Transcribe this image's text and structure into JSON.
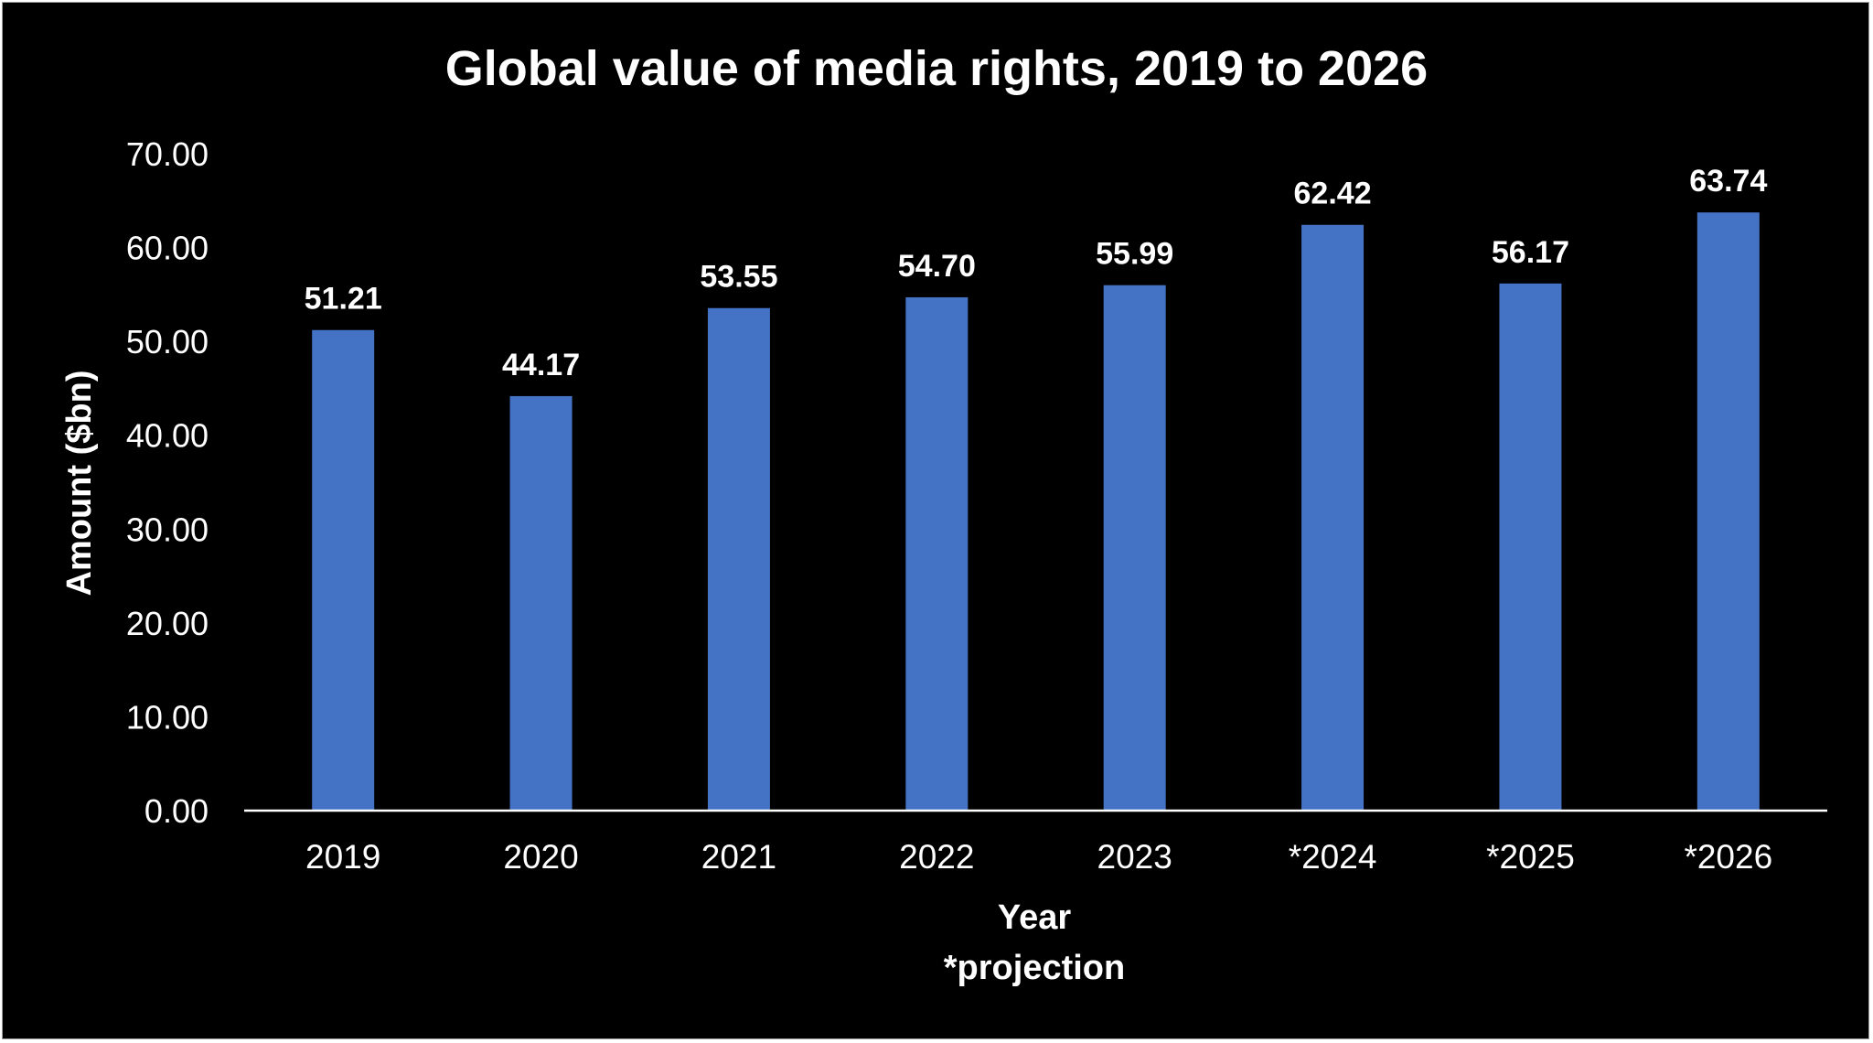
{
  "colors": {
    "background": "#000000",
    "bar": "#4472c4",
    "text": "#ffffff",
    "axis": "#ffffff"
  },
  "chart_data": {
    "type": "bar",
    "title": "Global value of media rights, 2019 to 2026",
    "xlabel": "Year",
    "footnote": "*projection",
    "ylabel": "Amount ($bn)",
    "categories": [
      "2019",
      "2020",
      "2021",
      "2022",
      "2023",
      "*2024",
      "*2025",
      "*2026"
    ],
    "values": [
      51.21,
      44.17,
      53.55,
      54.7,
      55.99,
      62.42,
      56.17,
      63.74
    ],
    "value_labels": [
      "51.21",
      "44.17",
      "53.55",
      "54.70",
      "55.99",
      "62.42",
      "56.17",
      "63.74"
    ],
    "ylim": [
      0,
      70
    ],
    "yticks": [
      0,
      10,
      20,
      30,
      40,
      50,
      60,
      70
    ],
    "ytick_labels": [
      "0.00",
      "10.00",
      "20.00",
      "30.00",
      "40.00",
      "50.00",
      "60.00",
      "70.00"
    ],
    "grid": false,
    "legend": "none"
  }
}
